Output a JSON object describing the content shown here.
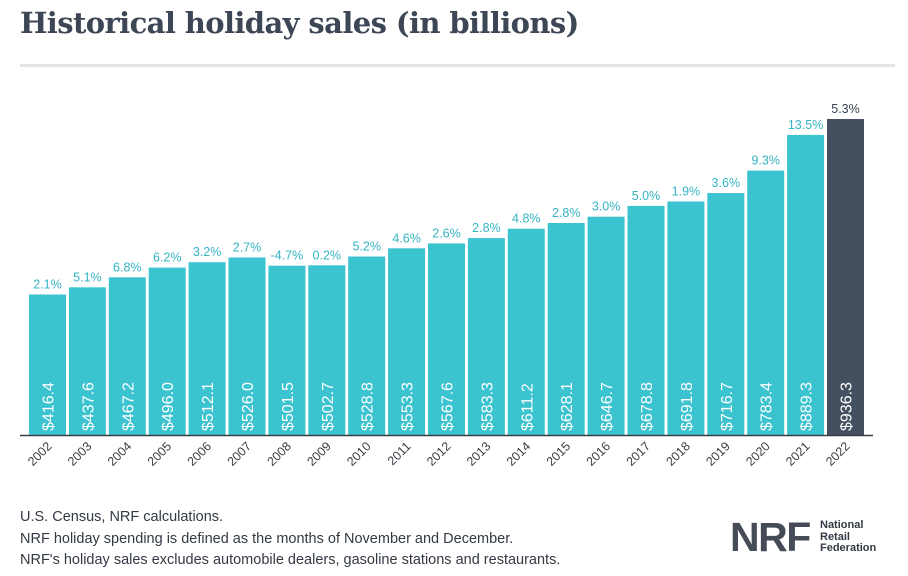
{
  "header": {
    "title": "Historical holiday sales (in billions)"
  },
  "chart_data": {
    "type": "bar",
    "title": "Historical holiday sales (in billions)",
    "xlabel": "",
    "ylabel": "",
    "categories": [
      "2002",
      "2003",
      "2004",
      "2005",
      "2006",
      "2007",
      "2008",
      "2009",
      "2010",
      "2011",
      "2012",
      "2013",
      "2014",
      "2015",
      "2016",
      "2017",
      "2018",
      "2019",
      "2020",
      "2021",
      "2022"
    ],
    "values": [
      416.4,
      437.6,
      467.2,
      496.0,
      512.1,
      526.0,
      501.5,
      502.7,
      528.8,
      553.3,
      567.6,
      583.3,
      611.2,
      628.1,
      646.7,
      678.8,
      691.8,
      716.7,
      783.4,
      889.3,
      936.3
    ],
    "value_labels": [
      "$416.4",
      "$437.6",
      "$467.2",
      "$496.0",
      "$512.1",
      "$526.0",
      "$501.5",
      "$502.7",
      "$528.8",
      "$553.3",
      "$567.6",
      "$583.3",
      "$611.2",
      "$628.1",
      "$646.7",
      "$678.8",
      "$691.8",
      "$716.7",
      "$783.4",
      "$889.3",
      "$936.3"
    ],
    "growth_labels": [
      "2.1%",
      "5.1%",
      "6.8%",
      "6.2%",
      "3.2%",
      "2.7%",
      "-4.7%",
      "0.2%",
      "5.2%",
      "4.6%",
      "2.6%",
      "2.8%",
      "4.8%",
      "2.8%",
      "3.0%",
      "5.0%",
      "1.9%",
      "3.6%",
      "9.3%",
      "13.5%",
      "5.3%"
    ],
    "ylim": [
      0,
      936.3
    ],
    "grid": false,
    "legend": "none",
    "colors": {
      "bar": "#3cc3d0",
      "bar_highlight": "#44505f",
      "growth_text": "#35b4c3",
      "highlight_text": "#3a4250",
      "axis": "#3a3f45"
    }
  },
  "footnotes": [
    "U.S. Census, NRF calculations.",
    "NRF holiday spending is defined as the months of November and December.",
    "NRF's holiday sales excludes automobile dealers, gasoline stations and restaurants."
  ],
  "logo": {
    "mark": "NRF",
    "name_lines": [
      "National",
      "Retail",
      "Federation"
    ]
  }
}
